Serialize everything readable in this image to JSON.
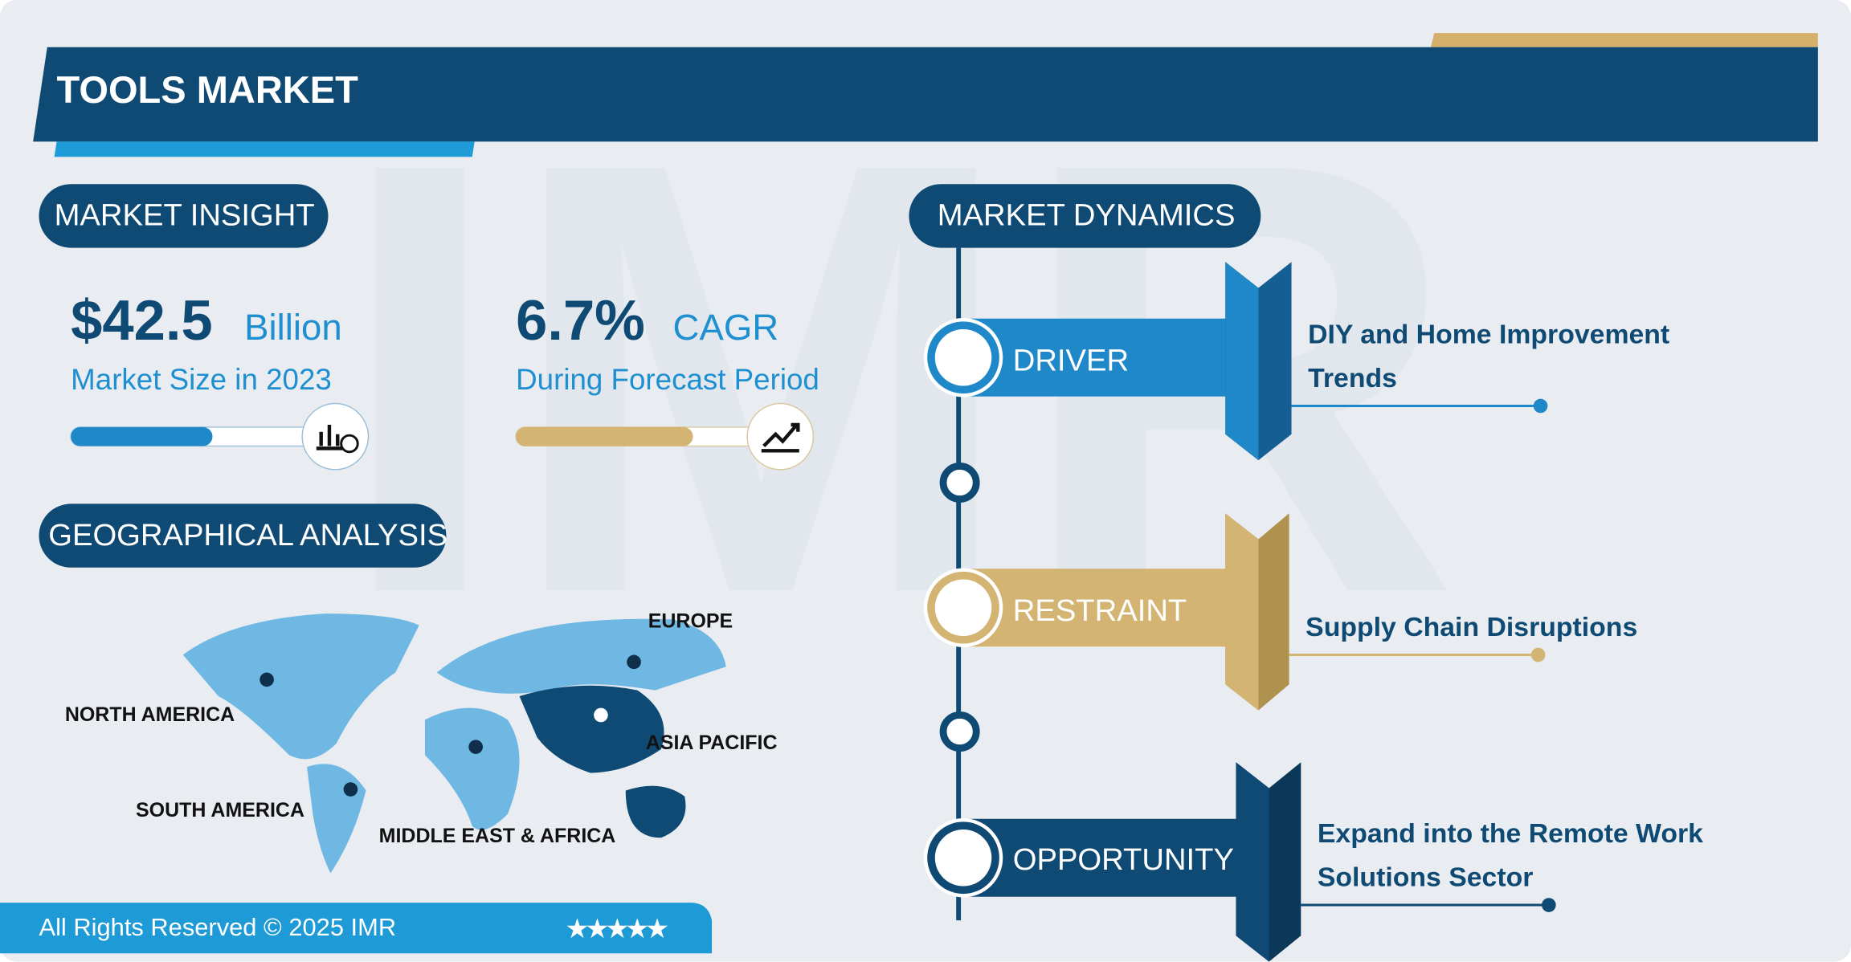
{
  "header": {
    "title": "TOOLS MARKET"
  },
  "market_insight": {
    "heading": "MARKET INSIGHT",
    "market_size": {
      "value": "$42.5",
      "unit": "Billion",
      "label": "Market Size in 2023"
    },
    "cagr": {
      "value": "6.7%",
      "unit": "CAGR",
      "label": "During Forecast Period"
    }
  },
  "geographical_analysis": {
    "heading": "GEOGRAPHICAL ANALYSIS",
    "regions": [
      "EUROPE",
      "NORTH AMERICA",
      "ASIA PACIFIC",
      "SOUTH AMERICA",
      "MIDDLE EAST & AFRICA"
    ]
  },
  "market_dynamics": {
    "heading": "MARKET DYNAMICS",
    "items": [
      {
        "label": "DRIVER",
        "text": "DIY and Home Improvement Trends"
      },
      {
        "label": "RESTRAINT",
        "text": "Supply Chain Disruptions"
      },
      {
        "label": "OPPORTUNITY",
        "text": "Expand into the Remote Work Solutions Sector"
      }
    ]
  },
  "footer": {
    "text": "All Rights Reserved © 2025 IMR",
    "rating": "★★★★★"
  }
}
